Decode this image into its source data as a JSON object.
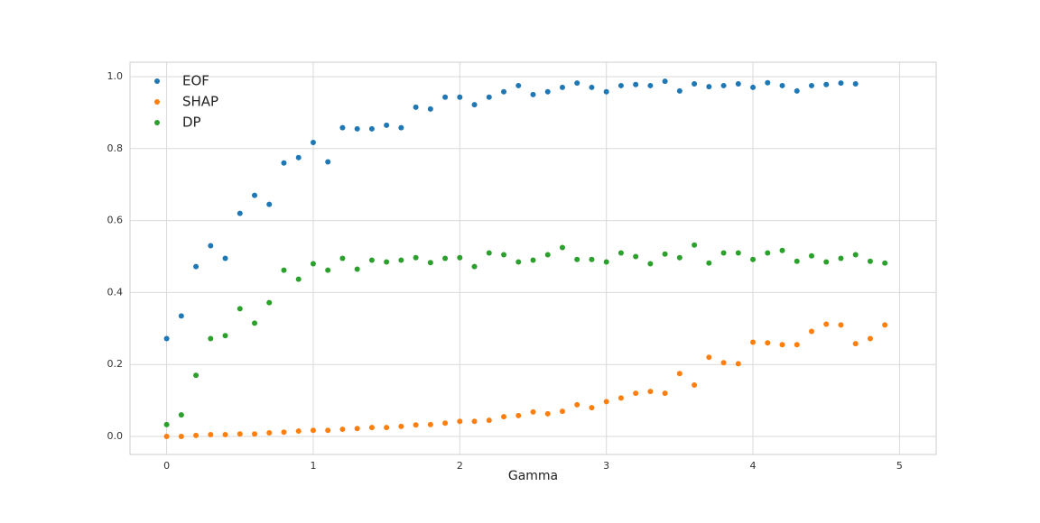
{
  "chart_data": {
    "type": "scatter",
    "title": "",
    "xlabel": "Gamma",
    "ylabel": "",
    "xlim": [
      -0.25,
      5.25
    ],
    "ylim": [
      -0.05,
      1.04
    ],
    "x_ticks": [
      0,
      1,
      2,
      3,
      4,
      5
    ],
    "y_ticks": [
      0.0,
      0.2,
      0.4,
      0.6,
      0.8,
      1.0
    ],
    "x_tick_labels": [
      "0",
      "1",
      "2",
      "3",
      "4",
      "5"
    ],
    "y_tick_labels": [
      "0.0",
      "0.2",
      "0.4",
      "0.6",
      "0.8",
      "1.0"
    ],
    "grid": true,
    "legend_position": "top-left",
    "x": [
      0.0,
      0.1,
      0.2,
      0.3,
      0.4,
      0.5,
      0.6,
      0.7,
      0.8,
      0.9,
      1.0,
      1.1,
      1.2,
      1.3,
      1.4,
      1.5,
      1.6,
      1.7,
      1.8,
      1.9,
      2.0,
      2.1,
      2.2,
      2.3,
      2.4,
      2.5,
      2.6,
      2.7,
      2.8,
      2.9,
      3.0,
      3.1,
      3.2,
      3.3,
      3.4,
      3.5,
      3.6,
      3.7,
      3.8,
      3.9,
      4.0,
      4.1,
      4.2,
      4.3,
      4.4,
      4.5,
      4.6,
      4.7,
      4.8,
      4.9,
      5.0
    ],
    "series": [
      {
        "name": "EOF",
        "color": "#1f77b4",
        "values": [
          0.272,
          0.335,
          0.472,
          0.53,
          0.495,
          0.62,
          0.67,
          0.645,
          0.76,
          0.775,
          0.817,
          0.763,
          0.858,
          0.855,
          0.855,
          0.865,
          0.858,
          0.915,
          0.91,
          0.943,
          0.943,
          0.922,
          0.943,
          0.958,
          0.975,
          0.95,
          0.958,
          0.97,
          0.982,
          0.97,
          0.958,
          0.975,
          0.978,
          0.975,
          0.987,
          0.96,
          0.98,
          0.972,
          0.975,
          0.98,
          0.97,
          0.983,
          0.975,
          0.96,
          0.975,
          0.978,
          0.982,
          0.98,
          null,
          null,
          null
        ]
      },
      {
        "name": "SHAP",
        "color": "#ff7f0e",
        "values": [
          0.0,
          0.0,
          0.003,
          0.005,
          0.005,
          0.007,
          0.007,
          0.01,
          0.012,
          0.015,
          0.017,
          0.017,
          0.02,
          0.022,
          0.025,
          0.025,
          0.028,
          0.032,
          0.033,
          0.037,
          0.042,
          0.042,
          0.045,
          0.055,
          0.058,
          0.068,
          0.063,
          0.07,
          0.088,
          0.08,
          0.097,
          0.107,
          0.12,
          0.125,
          0.12,
          0.175,
          0.143,
          0.22,
          0.205,
          0.202,
          0.262,
          0.26,
          0.255,
          0.255,
          0.292,
          0.312,
          0.31,
          0.258,
          0.272,
          0.31,
          null
        ]
      },
      {
        "name": "DP",
        "color": "#2ca02c",
        "values": [
          0.033,
          0.06,
          0.17,
          0.272,
          0.28,
          0.355,
          0.315,
          0.372,
          0.462,
          0.437,
          0.48,
          0.462,
          0.495,
          0.465,
          0.49,
          0.485,
          0.49,
          0.497,
          0.483,
          0.495,
          0.497,
          0.472,
          0.51,
          0.505,
          0.485,
          0.49,
          0.505,
          0.525,
          0.492,
          0.492,
          0.485,
          0.51,
          0.5,
          0.48,
          0.507,
          0.497,
          0.532,
          0.482,
          0.51,
          0.51,
          0.492,
          0.51,
          0.517,
          0.487,
          0.502,
          0.485,
          0.495,
          0.505,
          0.487,
          0.482,
          null
        ]
      }
    ]
  }
}
